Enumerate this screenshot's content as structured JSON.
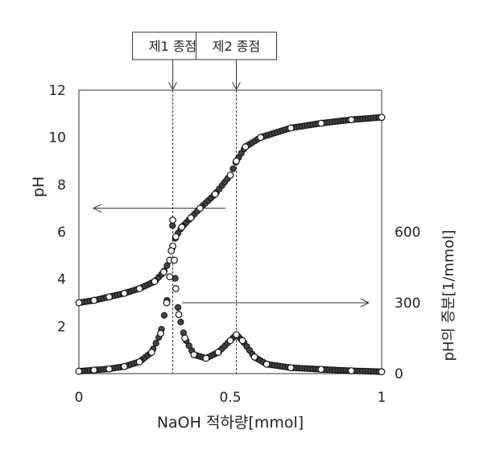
{
  "chart_data": {
    "type": "scatter",
    "title": "",
    "xlabel": "NaOH 적하량[mmol]",
    "ylabel_left": "pH",
    "ylabel_right": "pH의 증분[1/mmol]",
    "xlim": [
      0,
      1
    ],
    "ylim_left": [
      0,
      12
    ],
    "ylim_right": [
      0,
      1200
    ],
    "x_ticks": [
      "0",
      "0.5",
      "1"
    ],
    "x_tick_values": [
      0,
      0.5,
      1
    ],
    "y_left_ticks": [
      "2",
      "4",
      "6",
      "8",
      "10",
      "12"
    ],
    "y_left_tick_values": [
      2,
      4,
      6,
      8,
      10,
      12
    ],
    "y_right_ticks": [
      "0",
      "300",
      "600"
    ],
    "y_right_tick_values": [
      0,
      300,
      600
    ],
    "grid": false,
    "annotations": {
      "ep1_label": "제1 종점",
      "ep1_x": 0.31,
      "ep2_label": "제2 종점",
      "ep2_x": 0.52
    },
    "series": [
      {
        "name": "pH",
        "axis": "left",
        "x": [
          0,
          0.05,
          0.1,
          0.15,
          0.2,
          0.25,
          0.28,
          0.3,
          0.31,
          0.32,
          0.34,
          0.37,
          0.4,
          0.45,
          0.5,
          0.52,
          0.55,
          0.6,
          0.7,
          0.8,
          0.9,
          1.0
        ],
        "values": [
          3.0,
          3.1,
          3.25,
          3.4,
          3.6,
          3.9,
          4.3,
          4.8,
          5.4,
          5.8,
          6.2,
          6.6,
          7.0,
          7.6,
          8.4,
          9.0,
          9.6,
          10.0,
          10.4,
          10.6,
          10.75,
          10.85
        ]
      },
      {
        "name": "pH의 증분",
        "axis": "right",
        "x": [
          0,
          0.05,
          0.1,
          0.15,
          0.2,
          0.24,
          0.27,
          0.29,
          0.3,
          0.305,
          0.31,
          0.315,
          0.32,
          0.33,
          0.35,
          0.38,
          0.42,
          0.46,
          0.5,
          0.52,
          0.54,
          0.58,
          0.62,
          0.7,
          0.8,
          0.9,
          1.0
        ],
        "values": [
          10,
          15,
          20,
          30,
          50,
          90,
          170,
          300,
          410,
          520,
          650,
          480,
          360,
          250,
          150,
          80,
          65,
          90,
          140,
          165,
          140,
          70,
          40,
          25,
          18,
          12,
          8
        ]
      }
    ]
  }
}
